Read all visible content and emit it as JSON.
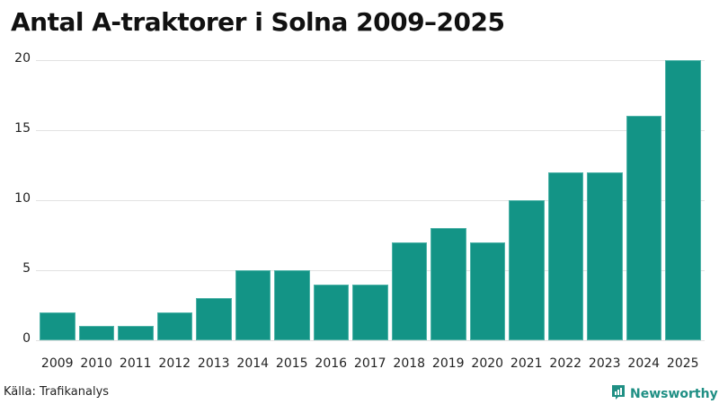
{
  "header": {
    "title": "Antal A-traktorer i Solna 2009–2025"
  },
  "footer": {
    "source": "Källa: Trafikanalys",
    "brand": "Newsworthy"
  },
  "colors": {
    "bar": "#139486",
    "brand": "#1f8f84",
    "grid": "#e2e2e2"
  },
  "chart_data": {
    "type": "bar",
    "title": "Antal A-traktorer i Solna 2009–2025",
    "xlabel": "",
    "ylabel": "",
    "categories": [
      "2009",
      "2010",
      "2011",
      "2012",
      "2013",
      "2014",
      "2015",
      "2016",
      "2017",
      "2018",
      "2019",
      "2020",
      "2021",
      "2022",
      "2023",
      "2024",
      "2025"
    ],
    "values": [
      2,
      1,
      1,
      2,
      3,
      5,
      5,
      4,
      4,
      7,
      8,
      7,
      10,
      12,
      12,
      16,
      20
    ],
    "ylim": [
      0,
      20
    ],
    "yticks": [
      0,
      5,
      10,
      15,
      20
    ],
    "grid": true,
    "legend": null,
    "source": "Källa: Trafikanalys"
  }
}
